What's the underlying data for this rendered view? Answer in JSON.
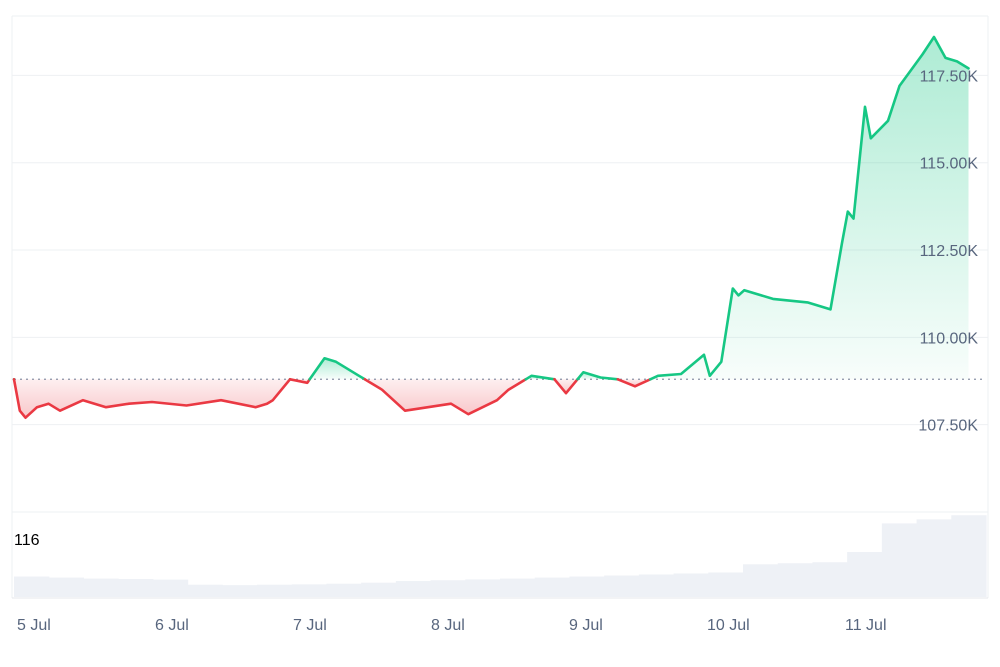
{
  "chart_data": {
    "type": "line",
    "baseline": 108800,
    "ylim": [
      105000,
      119200
    ],
    "y_ticks": [
      {
        "value": 107500,
        "label": "107.50K"
      },
      {
        "value": 110000,
        "label": "110.00K"
      },
      {
        "value": 112500,
        "label": "112.50K"
      },
      {
        "value": 115000,
        "label": "115.00K"
      },
      {
        "value": 117500,
        "label": "117.50K"
      }
    ],
    "x_ticks": [
      "5 Jul",
      "6 Jul",
      "7 Jul",
      "8 Jul",
      "9 Jul",
      "10 Jul",
      "11 Jul"
    ],
    "x": [
      "5 Jul 00:00",
      "5 Jul 01:00",
      "5 Jul 02:00",
      "5 Jul 04:00",
      "5 Jul 06:00",
      "5 Jul 08:00",
      "5 Jul 12:00",
      "5 Jul 16:00",
      "5 Jul 20:00",
      "6 Jul 00:00",
      "6 Jul 06:00",
      "6 Jul 12:00",
      "6 Jul 18:00",
      "6 Jul 20:00",
      "6 Jul 21:00",
      "7 Jul 00:00",
      "7 Jul 03:00",
      "7 Jul 06:00",
      "7 Jul 08:00",
      "7 Jul 12:00",
      "7 Jul 16:00",
      "7 Jul 20:00",
      "8 Jul 00:00",
      "8 Jul 04:00",
      "8 Jul 07:00",
      "8 Jul 12:00",
      "8 Jul 14:00",
      "8 Jul 18:00",
      "8 Jul 22:00",
      "9 Jul 00:00",
      "9 Jul 03:00",
      "9 Jul 06:00",
      "9 Jul 09:00",
      "9 Jul 12:00",
      "9 Jul 16:00",
      "9 Jul 20:00",
      "10 Jul 00:00",
      "10 Jul 01:00",
      "10 Jul 03:00",
      "10 Jul 05:00",
      "10 Jul 06:00",
      "10 Jul 07:00",
      "10 Jul 12:00",
      "10 Jul 18:00",
      "10 Jul 22:00",
      "11 Jul 00:00",
      "11 Jul 01:00",
      "11 Jul 02:00",
      "11 Jul 04:00",
      "11 Jul 05:00",
      "11 Jul 08:00",
      "11 Jul 10:00",
      "11 Jul 14:00",
      "11 Jul 16:00",
      "11 Jul 18:00",
      "11 Jul 20:00",
      "11 Jul 22:00"
    ],
    "series": [
      {
        "values": [
          108800,
          107900,
          107700,
          108000,
          108100,
          107900,
          108200,
          108000,
          108100,
          108150,
          108050,
          108200,
          108000,
          108100,
          108200,
          108800,
          108700,
          109400,
          109300,
          108900,
          108500,
          107900,
          108000,
          108100,
          107800,
          108200,
          108500,
          108900,
          108800,
          108400,
          109000,
          108850,
          108800,
          108600,
          108900,
          108950,
          109500,
          108900,
          109300,
          111400,
          111200,
          111350,
          111100,
          111000,
          110800,
          112700,
          113600,
          113400,
          116600,
          115700,
          116200,
          117200,
          118100,
          118600,
          118000,
          117900,
          117700
        ]
      }
    ],
    "volume": {
      "label": "116",
      "values": [
        1.0,
        0.95,
        0.9,
        0.88,
        0.85,
        0.6,
        0.58,
        0.6,
        0.62,
        0.65,
        0.7,
        0.78,
        0.82,
        0.86,
        0.9,
        0.95,
        1.0,
        1.05,
        1.1,
        1.15,
        1.2,
        1.6,
        1.65,
        1.7,
        2.2,
        3.6,
        3.8,
        4.0
      ]
    },
    "colors": {
      "up": "#16c784",
      "down": "#ea3943"
    }
  }
}
